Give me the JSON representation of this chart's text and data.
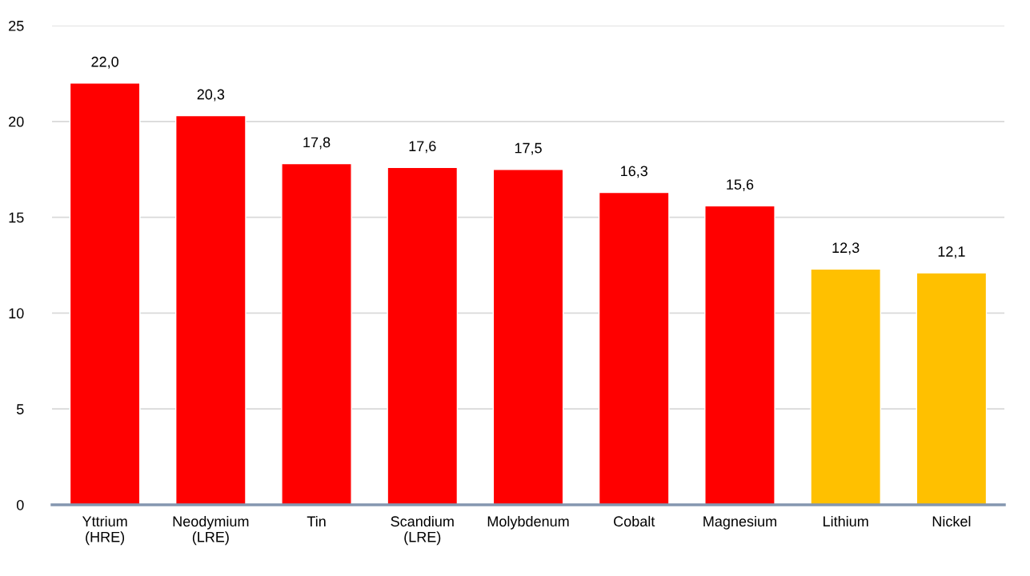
{
  "chart_data": {
    "type": "bar",
    "categories": [
      "Yttrium\n(HRE)",
      "Neodymium\n(LRE)",
      "Tin",
      "Scandium\n(LRE)",
      "Molybdenum",
      "Cobalt",
      "Magnesium",
      "Lithium",
      "Nickel"
    ],
    "values": [
      22.0,
      20.3,
      17.8,
      17.6,
      17.5,
      16.3,
      15.6,
      12.3,
      12.1
    ],
    "value_labels": [
      "22,0",
      "20,3",
      "17,8",
      "17,6",
      "17,5",
      "16,3",
      "15,6",
      "12,3",
      "12,1"
    ],
    "colors": [
      "#ff0000",
      "#ff0000",
      "#ff0000",
      "#ff0000",
      "#ff0000",
      "#ff0000",
      "#ff0000",
      "#ffc000",
      "#ffc000"
    ],
    "ylim": [
      0,
      25
    ],
    "yticks": [
      0,
      5,
      10,
      15,
      20,
      25
    ],
    "grid": "y",
    "legend": false
  }
}
